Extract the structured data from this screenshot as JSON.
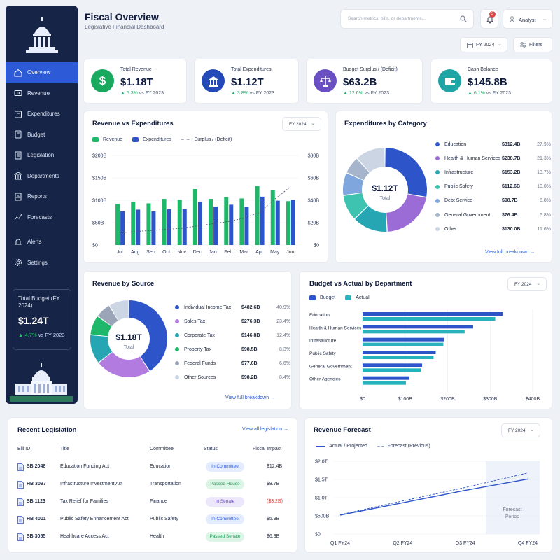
{
  "header": {
    "title": "Fiscal Overview",
    "subtitle": "Legislative Financial Dashboard",
    "search_placeholder": "Search metrics, bills, or departments...",
    "notifications": "3",
    "user": "Analyst",
    "year_filter": "FY 2024",
    "filters": "Filters"
  },
  "sidebar": {
    "items": [
      {
        "label": "Overview",
        "icon": "home-icon"
      },
      {
        "label": "Revenue",
        "icon": "revenue-icon"
      },
      {
        "label": "Expenditures",
        "icon": "expenditures-icon"
      },
      {
        "label": "Budget",
        "icon": "budget-icon"
      },
      {
        "label": "Legislation",
        "icon": "legislation-icon"
      },
      {
        "label": "Departments",
        "icon": "departments-icon"
      },
      {
        "label": "Reports",
        "icon": "reports-icon"
      },
      {
        "label": "Forecasts",
        "icon": "forecasts-icon"
      },
      {
        "label": "Alerts",
        "icon": "alerts-icon"
      },
      {
        "label": "Settings",
        "icon": "settings-icon"
      }
    ],
    "total_budget": {
      "label": "Total Budget (FY 2024)",
      "value": "$1.24T",
      "delta": "4.7%",
      "delta_suffix": " vs FY 2023"
    }
  },
  "kpis": [
    {
      "label": "Total Revenue",
      "value": "$1.18T",
      "delta": "5.3%",
      "suffix": " vs FY 2023",
      "color": "#18a95f",
      "icon": "$"
    },
    {
      "label": "Total Expenditures",
      "value": "$1.12T",
      "delta": "3.8%",
      "suffix": " vs FY 2023",
      "color": "#2449b8",
      "icon": "bank"
    },
    {
      "label": "Budget Surplus / (Deficit)",
      "value": "$63.2B",
      "delta": "12.6%",
      "suffix": " vs FY 2023",
      "color": "#6a4fc4",
      "icon": "scale"
    },
    {
      "label": "Cash Balance",
      "value": "$145.8B",
      "delta": "6.1%",
      "suffix": " vs FY 2023",
      "color": "#1fa5a5",
      "icon": "wallet"
    }
  ],
  "rev_exp": {
    "title": "Revenue vs Expenditures",
    "year": "FY 2024",
    "legend": [
      "Revenue",
      "Expenditures",
      "Surplus / (Deficit)"
    ]
  },
  "exp_cat": {
    "title": "Expenditures by Category",
    "center_value": "$1.12T",
    "center_label": "Total",
    "link": "View full breakdown"
  },
  "rev_src": {
    "title": "Revenue by Source",
    "center_value": "$1.18T",
    "center_label": "Total",
    "link": "View full breakdown"
  },
  "bva": {
    "title": "Budget vs Actual by Department",
    "year": "FY 2024",
    "legend": [
      "Budget",
      "Actual"
    ]
  },
  "legislation": {
    "title": "Recent Legislation",
    "link": "View all legislation",
    "headers": [
      "Bill ID",
      "Title",
      "Committee",
      "Status",
      "Fiscal Impact"
    ],
    "rows": [
      {
        "id": "SB 2048",
        "title": "Education Funding Act",
        "committee": "Education",
        "status": "In Committee",
        "kind": "committee",
        "impact": "$12.4B",
        "neg": false
      },
      {
        "id": "HB 3097",
        "title": "Infrastructure Investment Act",
        "committee": "Transportation",
        "status": "Passed House",
        "kind": "passed",
        "impact": "$8.7B",
        "neg": false
      },
      {
        "id": "SB 1123",
        "title": "Tax Relief for Families",
        "committee": "Finance",
        "status": "In Senate",
        "kind": "senate",
        "impact": "($3.2B)",
        "neg": true
      },
      {
        "id": "HB 4001",
        "title": "Public Safety Enhancement Act",
        "committee": "Public Safety",
        "status": "In Committee",
        "kind": "committee",
        "impact": "$5.9B",
        "neg": false
      },
      {
        "id": "SB 3055",
        "title": "Healthcare Access Act",
        "committee": "Health",
        "status": "Passed Senate",
        "kind": "passed",
        "impact": "$6.3B",
        "neg": false
      }
    ]
  },
  "forecast": {
    "title": "Revenue Forecast",
    "year": "FY 2024",
    "legend": [
      "Actual / Projected",
      "Forecast (Previous)"
    ],
    "period_label": [
      "Forecast",
      "Period"
    ]
  },
  "chart_data": [
    {
      "type": "bar",
      "title": "Revenue vs Expenditures",
      "categories": [
        "Jul",
        "Aug",
        "Sep",
        "Oct",
        "Nov",
        "Dec",
        "Jan",
        "Feb",
        "Mar",
        "Apr",
        "May",
        "Jun"
      ],
      "series": [
        {
          "name": "Revenue",
          "values": [
            92,
            97,
            93,
            103,
            101,
            125,
            103,
            107,
            104,
            132,
            122,
            98
          ]
        },
        {
          "name": "Expenditures",
          "values": [
            75,
            79,
            75,
            80,
            80,
            97,
            86,
            90,
            85,
            108,
            99,
            101
          ]
        },
        {
          "name": "Surplus / (Deficit)",
          "values": [
            11,
            12,
            13,
            14,
            15,
            17,
            19,
            21,
            24,
            29,
            41,
            52
          ],
          "axis": "right"
        }
      ],
      "yticks": [
        "$0",
        "$50B",
        "$100B",
        "$150B",
        "$200B"
      ],
      "y2ticks": [
        "$0",
        "$20B",
        "$40B",
        "$60B",
        "$80B"
      ],
      "ylim": [
        0,
        200
      ],
      "y2lim": [
        0,
        80
      ],
      "colors": [
        "#1fb86a",
        "#2d55c9",
        "#4a5572"
      ]
    },
    {
      "type": "pie",
      "title": "Expenditures by Category",
      "labels": [
        "Education",
        "Health & Human Services",
        "Infrastructure",
        "Public Safety",
        "Debt Service",
        "General Government",
        "Other"
      ],
      "values": [
        "$312.4B",
        "$238.7B",
        "$153.2B",
        "$112.6B",
        "$98.7B",
        "$76.4B",
        "$130.0B"
      ],
      "percents": [
        27.9,
        21.3,
        13.7,
        10.0,
        8.8,
        6.8,
        11.6
      ],
      "colors": [
        "#2d55c9",
        "#9b6cd6",
        "#26a6b3",
        "#3ec3b0",
        "#7fa7dd",
        "#a6b5cc",
        "#ccd5e3"
      ]
    },
    {
      "type": "pie",
      "title": "Revenue by Source",
      "labels": [
        "Individual Income Tax",
        "Sales Tax",
        "Corporate Tax",
        "Property Tax",
        "Federal Funds",
        "Other Sources"
      ],
      "values": [
        "$482.6B",
        "$276.3B",
        "$146.8B",
        "$98.5B",
        "$77.6B",
        "$98.2B"
      ],
      "percents": [
        40.9,
        23.4,
        12.4,
        8.3,
        6.6,
        8.4
      ],
      "colors": [
        "#2d55c9",
        "#b27be0",
        "#26a6b3",
        "#1fb86a",
        "#9aa6b8",
        "#ccd5e3"
      ]
    },
    {
      "type": "bar",
      "title": "Budget vs Actual by Department",
      "categories": [
        "Education",
        "Health & Human Services",
        "Infrastructure",
        "Public Safety",
        "General Government",
        "Other Agencies"
      ],
      "series": [
        {
          "name": "Budget",
          "values": [
            330,
            260,
            192,
            172,
            140,
            110
          ]
        },
        {
          "name": "Actual",
          "values": [
            312,
            240,
            190,
            167,
            137,
            102
          ]
        }
      ],
      "xticks": [
        "$0",
        "$100B",
        "$200B",
        "$300B",
        "$400B"
      ],
      "xlim": [
        0,
        400
      ],
      "colors": [
        "#2d55c9",
        "#26b3bd"
      ]
    },
    {
      "type": "line",
      "title": "Revenue Forecast",
      "categories": [
        "Q1 FY24",
        "Q2 FY24",
        "Q3 FY24",
        "Q4 FY24"
      ],
      "series": [
        {
          "name": "Actual / Projected",
          "values": [
            0.52,
            0.86,
            1.2,
            1.51
          ]
        },
        {
          "name": "Forecast (Previous)",
          "values": [
            0.53,
            0.91,
            1.28,
            1.68
          ]
        }
      ],
      "yticks": [
        "$0",
        "$500B",
        "$1.0T",
        "$1.5T",
        "$2.0T"
      ],
      "ylim": [
        0,
        2
      ],
      "colors": [
        "#2d55c9",
        "#2d55c9"
      ]
    }
  ]
}
